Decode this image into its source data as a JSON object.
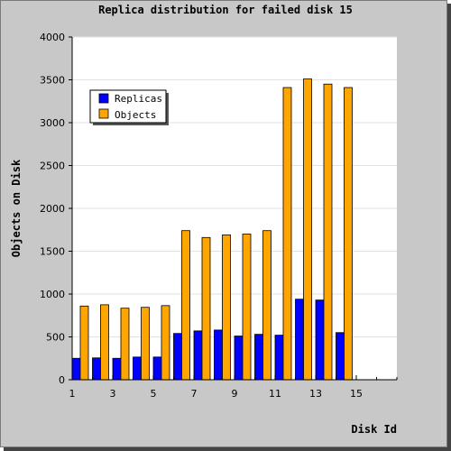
{
  "chart_data": {
    "type": "bar",
    "title": "Replica distribution for failed disk 15",
    "xlabel": "Disk Id",
    "ylabel": "Objects on Disk",
    "ylim": [
      0,
      4000
    ],
    "yticks": [
      0,
      500,
      1000,
      1500,
      2000,
      2500,
      3000,
      3500,
      4000
    ],
    "xlim": [
      1,
      17
    ],
    "xticks": [
      1,
      3,
      5,
      7,
      9,
      11,
      13,
      15
    ],
    "grid": true,
    "legend_position": "top-left",
    "x": [
      1,
      2,
      3,
      4,
      5,
      6,
      7,
      8,
      9,
      10,
      11,
      12,
      13,
      14
    ],
    "series": [
      {
        "name": "Replicas",
        "color": "#0000ff",
        "values": [
          250,
          255,
          250,
          265,
          265,
          540,
          570,
          580,
          510,
          530,
          520,
          940,
          930,
          550
        ]
      },
      {
        "name": "Objects",
        "color": "#ffa500",
        "values": [
          860,
          875,
          835,
          845,
          865,
          1740,
          1660,
          1690,
          1700,
          1740,
          3410,
          3510,
          3450,
          3410
        ]
      }
    ]
  }
}
